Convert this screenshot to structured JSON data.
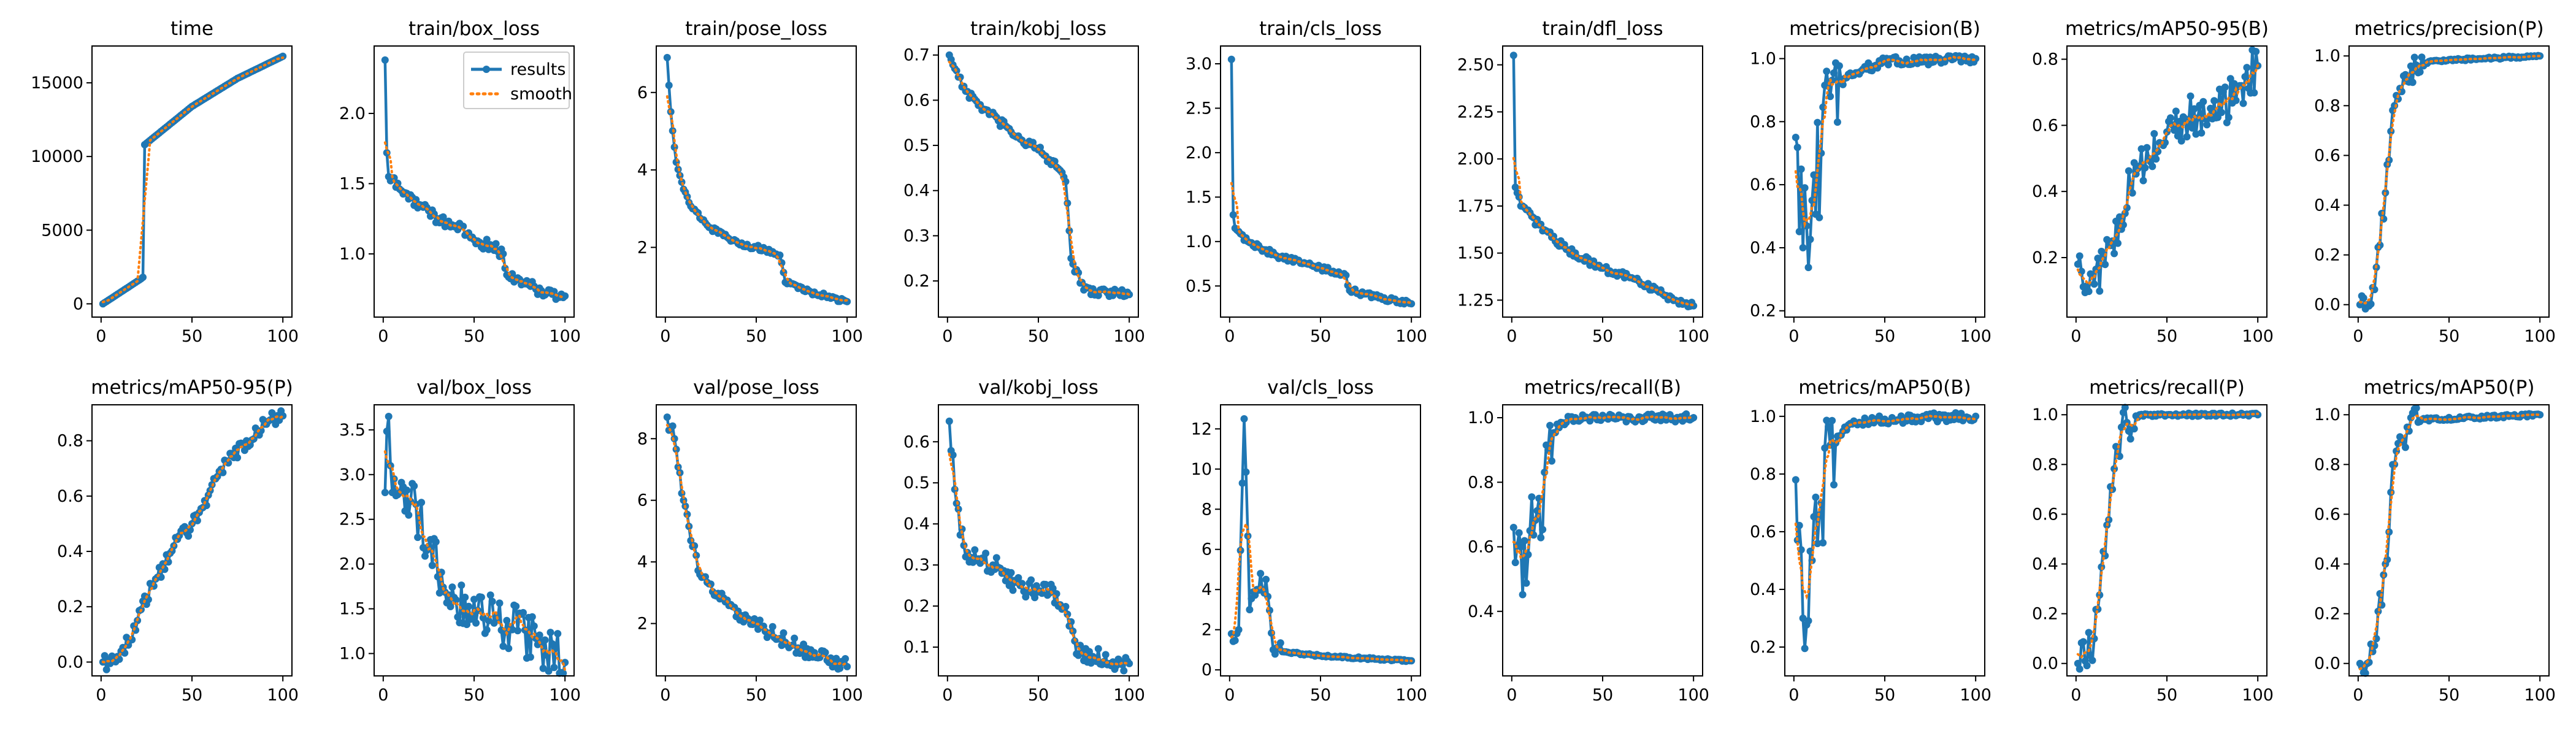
{
  "colors": {
    "results": "#1f77b4",
    "smooth": "#ff7f0e",
    "axis": "#000000",
    "background": "#ffffff"
  },
  "legend": {
    "location": "upper right of train/box_loss panel",
    "results": "results",
    "smooth": "smooth"
  },
  "chart_data": [
    {
      "title": "time",
      "type": "line",
      "ylim": [
        -900,
        17500
      ],
      "yticks": [
        "0",
        "5000",
        "10000",
        "15000"
      ],
      "ytick_values": [
        0,
        5000,
        10000,
        15000
      ],
      "xticks": [
        "0",
        "50",
        "100"
      ],
      "keypoints": [
        [
          1,
          0
        ],
        [
          22,
          1700
        ],
        [
          23,
          1800
        ],
        [
          24,
          10800
        ],
        [
          50,
          13400
        ],
        [
          75,
          15300
        ],
        [
          100,
          16800
        ]
      ],
      "noise": 0
    },
    {
      "title": "train/box_loss",
      "type": "line",
      "ylim": [
        0.55,
        2.48
      ],
      "yticks": [
        "1.0",
        "1.5",
        "2.0"
      ],
      "ytick_values": [
        1.0,
        1.5,
        2.0
      ],
      "xticks": [
        "0",
        "50",
        "100"
      ],
      "keypoints": [
        [
          1,
          2.38
        ],
        [
          2,
          1.72
        ],
        [
          3,
          1.55
        ],
        [
          10,
          1.45
        ],
        [
          20,
          1.35
        ],
        [
          30,
          1.25
        ],
        [
          40,
          1.2
        ],
        [
          50,
          1.1
        ],
        [
          60,
          1.05
        ],
        [
          66,
          1.0
        ],
        [
          68,
          0.85
        ],
        [
          80,
          0.78
        ],
        [
          90,
          0.72
        ],
        [
          100,
          0.7
        ]
      ],
      "noise": 0.04
    },
    {
      "title": "train/pose_loss",
      "type": "line",
      "ylim": [
        0.2,
        7.2
      ],
      "yticks": [
        "2",
        "4",
        "6"
      ],
      "ytick_values": [
        2,
        4,
        6
      ],
      "xticks": [
        "0",
        "50",
        "100"
      ],
      "keypoints": [
        [
          1,
          6.9
        ],
        [
          3,
          5.5
        ],
        [
          6,
          4.2
        ],
        [
          10,
          3.5
        ],
        [
          15,
          3.0
        ],
        [
          25,
          2.5
        ],
        [
          40,
          2.1
        ],
        [
          55,
          1.95
        ],
        [
          63,
          1.8
        ],
        [
          66,
          1.1
        ],
        [
          80,
          0.85
        ],
        [
          100,
          0.6
        ]
      ],
      "noise": 0.06
    },
    {
      "title": "train/kobj_loss",
      "type": "line",
      "ylim": [
        0.12,
        0.72
      ],
      "yticks": [
        "0.2",
        "0.3",
        "0.4",
        "0.5",
        "0.6",
        "0.7"
      ],
      "ytick_values": [
        0.2,
        0.3,
        0.4,
        0.5,
        0.6,
        0.7
      ],
      "xticks": [
        "0",
        "50",
        "100"
      ],
      "keypoints": [
        [
          1,
          0.7
        ],
        [
          10,
          0.62
        ],
        [
          20,
          0.58
        ],
        [
          35,
          0.53
        ],
        [
          50,
          0.49
        ],
        [
          63,
          0.44
        ],
        [
          65,
          0.42
        ],
        [
          68,
          0.25
        ],
        [
          75,
          0.18
        ],
        [
          100,
          0.17
        ]
      ],
      "noise": 0.01
    },
    {
      "title": "train/cls_loss",
      "type": "line",
      "ylim": [
        0.15,
        3.2
      ],
      "yticks": [
        "0.5",
        "1.0",
        "1.5",
        "2.0",
        "2.5",
        "3.0"
      ],
      "ytick_values": [
        0.5,
        1.0,
        1.5,
        2.0,
        2.5,
        3.0
      ],
      "xticks": [
        "0",
        "50",
        "100"
      ],
      "keypoints": [
        [
          1,
          3.05
        ],
        [
          2,
          1.3
        ],
        [
          3,
          1.15
        ],
        [
          10,
          1.0
        ],
        [
          25,
          0.85
        ],
        [
          50,
          0.7
        ],
        [
          64,
          0.62
        ],
        [
          66,
          0.45
        ],
        [
          80,
          0.38
        ],
        [
          100,
          0.3
        ]
      ],
      "noise": 0.03
    },
    {
      "title": "train/dfl_loss",
      "type": "line",
      "ylim": [
        1.16,
        2.6
      ],
      "yticks": [
        "1.25",
        "1.50",
        "1.75",
        "2.00",
        "2.25",
        "2.50"
      ],
      "ytick_values": [
        1.25,
        1.5,
        1.75,
        2.0,
        2.25,
        2.5
      ],
      "xticks": [
        "0",
        "50",
        "100"
      ],
      "keypoints": [
        [
          1,
          2.55
        ],
        [
          2,
          1.85
        ],
        [
          5,
          1.75
        ],
        [
          15,
          1.65
        ],
        [
          30,
          1.52
        ],
        [
          50,
          1.42
        ],
        [
          70,
          1.35
        ],
        [
          90,
          1.25
        ],
        [
          100,
          1.22
        ]
      ],
      "noise": 0.02
    },
    {
      "title": "metrics/precision(B)",
      "type": "line",
      "ylim": [
        0.18,
        1.04
      ],
      "yticks": [
        "0.2",
        "0.4",
        "0.6",
        "0.8",
        "1.0"
      ],
      "ytick_values": [
        0.2,
        0.4,
        0.6,
        0.8,
        1.0
      ],
      "xticks": [
        "0",
        "50",
        "100"
      ],
      "keypoints": [
        [
          1,
          0.75
        ],
        [
          5,
          0.4
        ],
        [
          10,
          0.55
        ],
        [
          15,
          0.7
        ],
        [
          20,
          0.88
        ],
        [
          30,
          0.95
        ],
        [
          50,
          0.99
        ],
        [
          100,
          1.0
        ]
      ],
      "noise": 0.18,
      "noise_until": 25
    },
    {
      "title": "metrics/mAP50-95(B)",
      "type": "line",
      "ylim": [
        0.02,
        0.84
      ],
      "yticks": [
        "0.2",
        "0.4",
        "0.6",
        "0.8"
      ],
      "ytick_values": [
        0.2,
        0.4,
        0.6,
        0.8
      ],
      "xticks": [
        "0",
        "50",
        "100"
      ],
      "keypoints": [
        [
          1,
          0.18
        ],
        [
          10,
          0.12
        ],
        [
          20,
          0.25
        ],
        [
          30,
          0.42
        ],
        [
          40,
          0.5
        ],
        [
          50,
          0.58
        ],
        [
          60,
          0.62
        ],
        [
          75,
          0.62
        ],
        [
          90,
          0.72
        ],
        [
          100,
          0.78
        ]
      ],
      "noise": 0.07
    },
    {
      "title": "metrics/precision(P)",
      "type": "line",
      "ylim": [
        -0.05,
        1.04
      ],
      "yticks": [
        "0.0",
        "0.2",
        "0.4",
        "0.6",
        "0.8",
        "1.0"
      ],
      "ytick_values": [
        0,
        0.2,
        0.4,
        0.6,
        0.8,
        1.0
      ],
      "xticks": [
        "0",
        "50",
        "100"
      ],
      "keypoints": [
        [
          1,
          0.0
        ],
        [
          5,
          0.0
        ],
        [
          10,
          0.15
        ],
        [
          15,
          0.45
        ],
        [
          20,
          0.8
        ],
        [
          25,
          0.92
        ],
        [
          40,
          0.98
        ],
        [
          100,
          1.0
        ]
      ],
      "noise": 0.06,
      "noise_until": 35
    },
    {
      "title": "metrics/mAP50-95(P)",
      "type": "line",
      "ylim": [
        -0.05,
        0.93
      ],
      "yticks": [
        "0.0",
        "0.2",
        "0.4",
        "0.6",
        "0.8"
      ],
      "ytick_values": [
        0,
        0.2,
        0.4,
        0.6,
        0.8
      ],
      "xticks": [
        "0",
        "50",
        "100"
      ],
      "keypoints": [
        [
          1,
          0.0
        ],
        [
          10,
          0.01
        ],
        [
          20,
          0.15
        ],
        [
          30,
          0.3
        ],
        [
          40,
          0.42
        ],
        [
          50,
          0.5
        ],
        [
          60,
          0.62
        ],
        [
          70,
          0.72
        ],
        [
          80,
          0.8
        ],
        [
          90,
          0.86
        ],
        [
          100,
          0.89
        ]
      ],
      "noise": 0.03
    },
    {
      "title": "val/box_loss",
      "type": "line",
      "ylim": [
        0.75,
        3.78
      ],
      "yticks": [
        "1.0",
        "1.5",
        "2.0",
        "2.5",
        "3.0",
        "3.5"
      ],
      "ytick_values": [
        1.0,
        1.5,
        2.0,
        2.5,
        3.0,
        3.5
      ],
      "xticks": [
        "0",
        "50",
        "100"
      ],
      "keypoints": [
        [
          1,
          2.8
        ],
        [
          3,
          3.65
        ],
        [
          5,
          2.8
        ],
        [
          15,
          2.7
        ],
        [
          25,
          2.2
        ],
        [
          40,
          1.6
        ],
        [
          55,
          1.4
        ],
        [
          70,
          1.3
        ],
        [
          85,
          1.1
        ],
        [
          100,
          0.9
        ]
      ],
      "noise": 0.3
    },
    {
      "title": "val/pose_loss",
      "type": "line",
      "ylim": [
        0.3,
        9.1
      ],
      "yticks": [
        "2",
        "4",
        "6",
        "8"
      ],
      "ytick_values": [
        2,
        4,
        6,
        8
      ],
      "xticks": [
        "0",
        "50",
        "100"
      ],
      "keypoints": [
        [
          1,
          8.7
        ],
        [
          5,
          8.0
        ],
        [
          10,
          6.0
        ],
        [
          15,
          4.5
        ],
        [
          20,
          3.5
        ],
        [
          30,
          2.8
        ],
        [
          50,
          2.0
        ],
        [
          70,
          1.3
        ],
        [
          85,
          0.9
        ],
        [
          100,
          0.6
        ]
      ],
      "noise": 0.25
    },
    {
      "title": "val/kobj_loss",
      "type": "line",
      "ylim": [
        0.03,
        0.69
      ],
      "yticks": [
        "0.1",
        "0.2",
        "0.3",
        "0.4",
        "0.5",
        "0.6"
      ],
      "ytick_values": [
        0.1,
        0.2,
        0.3,
        0.4,
        0.5,
        0.6
      ],
      "xticks": [
        "0",
        "50",
        "100"
      ],
      "keypoints": [
        [
          1,
          0.65
        ],
        [
          5,
          0.45
        ],
        [
          10,
          0.32
        ],
        [
          25,
          0.3
        ],
        [
          40,
          0.25
        ],
        [
          60,
          0.23
        ],
        [
          66,
          0.18
        ],
        [
          72,
          0.08
        ],
        [
          100,
          0.06
        ]
      ],
      "noise": 0.025
    },
    {
      "title": "val/cls_loss",
      "type": "line",
      "ylim": [
        -0.3,
        13.2
      ],
      "yticks": [
        "0",
        "2",
        "4",
        "6",
        "8",
        "10",
        "12"
      ],
      "ytick_values": [
        0,
        2,
        4,
        6,
        8,
        10,
        12
      ],
      "xticks": [
        "0",
        "50",
        "100"
      ],
      "keypoints": [
        [
          1,
          1.8
        ],
        [
          5,
          2.0
        ],
        [
          8,
          12.5
        ],
        [
          11,
          3.0
        ],
        [
          15,
          4.0
        ],
        [
          20,
          4.5
        ],
        [
          24,
          1.0
        ],
        [
          30,
          0.9
        ],
        [
          50,
          0.7
        ],
        [
          100,
          0.45
        ]
      ],
      "noise": 0.6,
      "noise_until": 28
    },
    {
      "title": "metrics/recall(B)",
      "type": "line",
      "ylim": [
        0.2,
        1.04
      ],
      "yticks": [
        "0.4",
        "0.6",
        "0.8",
        "1.0"
      ],
      "ytick_values": [
        0.4,
        0.6,
        0.8,
        1.0
      ],
      "xticks": [
        "0",
        "50",
        "100"
      ],
      "keypoints": [
        [
          1,
          0.66
        ],
        [
          5,
          0.6
        ],
        [
          10,
          0.65
        ],
        [
          15,
          0.75
        ],
        [
          20,
          0.9
        ],
        [
          25,
          0.98
        ],
        [
          35,
          1.0
        ],
        [
          100,
          1.0
        ]
      ],
      "noise": 0.16,
      "noise_until": 22
    },
    {
      "title": "metrics/mAP50(B)",
      "type": "line",
      "ylim": [
        0.1,
        1.04
      ],
      "yticks": [
        "0.2",
        "0.4",
        "0.6",
        "0.8",
        "1.0"
      ],
      "ytick_values": [
        0.2,
        0.4,
        0.6,
        0.8,
        1.0
      ],
      "xticks": [
        "0",
        "50",
        "100"
      ],
      "keypoints": [
        [
          1,
          0.78
        ],
        [
          5,
          0.3
        ],
        [
          10,
          0.5
        ],
        [
          15,
          0.7
        ],
        [
          20,
          0.9
        ],
        [
          30,
          0.97
        ],
        [
          50,
          0.99
        ],
        [
          100,
          1.0
        ]
      ],
      "noise": 0.2,
      "noise_until": 22
    },
    {
      "title": "metrics/recall(P)",
      "type": "line",
      "ylim": [
        -0.05,
        1.04
      ],
      "yticks": [
        "0.0",
        "0.2",
        "0.4",
        "0.6",
        "0.8",
        "1.0"
      ],
      "ytick_values": [
        0,
        0.2,
        0.4,
        0.6,
        0.8,
        1.0
      ],
      "xticks": [
        "0",
        "50",
        "100"
      ],
      "keypoints": [
        [
          1,
          0.0
        ],
        [
          5,
          0.01
        ],
        [
          10,
          0.1
        ],
        [
          15,
          0.45
        ],
        [
          20,
          0.7
        ],
        [
          25,
          0.95
        ],
        [
          35,
          1.0
        ],
        [
          100,
          1.0
        ]
      ],
      "noise": 0.08,
      "noise_until": 32
    },
    {
      "title": "metrics/mAP50(P)",
      "type": "line",
      "ylim": [
        -0.05,
        1.04
      ],
      "yticks": [
        "0.0",
        "0.2",
        "0.4",
        "0.6",
        "0.8",
        "1.0"
      ],
      "ytick_values": [
        0,
        0.2,
        0.4,
        0.6,
        0.8,
        1.0
      ],
      "xticks": [
        "0",
        "50",
        "100"
      ],
      "keypoints": [
        [
          1,
          0.0
        ],
        [
          5,
          0.0
        ],
        [
          10,
          0.1
        ],
        [
          15,
          0.4
        ],
        [
          20,
          0.8
        ],
        [
          25,
          0.9
        ],
        [
          35,
          0.98
        ],
        [
          100,
          1.0
        ]
      ],
      "noise": 0.08,
      "noise_until": 32
    }
  ]
}
